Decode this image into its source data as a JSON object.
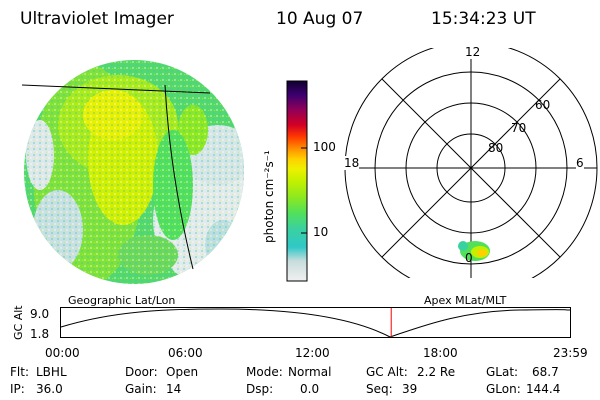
{
  "header": {
    "title": "Ultraviolet Imager",
    "date": "10 Aug 07",
    "time": "15:34:23 UT"
  },
  "colorbar": {
    "label": "photon cm⁻²s⁻¹",
    "ticks": [
      "100",
      "10"
    ],
    "scale": "log",
    "colors": [
      "#f0f0f0",
      "#c8dcdc",
      "#2fc8c8",
      "#3ad1a1",
      "#52e05a",
      "#8ee81f",
      "#c4f000",
      "#eef000",
      "#ffd000",
      "#ff9200",
      "#ff3a00",
      "#d40024",
      "#8c005a",
      "#3c0070",
      "#100030"
    ]
  },
  "polar_plot": {
    "mlt_labels": {
      "top": "12",
      "left": "18",
      "right": "6",
      "bottom": "0"
    },
    "lat_labels": [
      "60",
      "70",
      "80"
    ]
  },
  "labels": {
    "geographic": "Geographic Lat/Lon",
    "apex": "Apex MLat/MLT"
  },
  "altitude_plot": {
    "ylabel": "GC Alt",
    "yticks": [
      "9.0",
      "1.8"
    ],
    "xticks": [
      "00:00",
      "06:00",
      "12:00",
      "18:00",
      "23:59"
    ],
    "current_time_hours": 15.57,
    "marker_color": "#ff0000"
  },
  "footer": {
    "row1": [
      {
        "label": "Flt:",
        "value": "LBHL"
      },
      {
        "label": "Door:",
        "value": "Open"
      },
      {
        "label": "Mode:",
        "value": "Normal"
      },
      {
        "label": "GC Alt:",
        "value": "2.2 Re"
      },
      {
        "label": "GLat:",
        "value": "68.7"
      }
    ],
    "row2": [
      {
        "label": "IP:",
        "value": "36.0"
      },
      {
        "label": "Gain:",
        "value": "14"
      },
      {
        "label": "Dsp:",
        "value": "0.0"
      },
      {
        "label": "Seq:",
        "value": "39"
      },
      {
        "label": "GLon:",
        "value": "144.4"
      }
    ]
  }
}
